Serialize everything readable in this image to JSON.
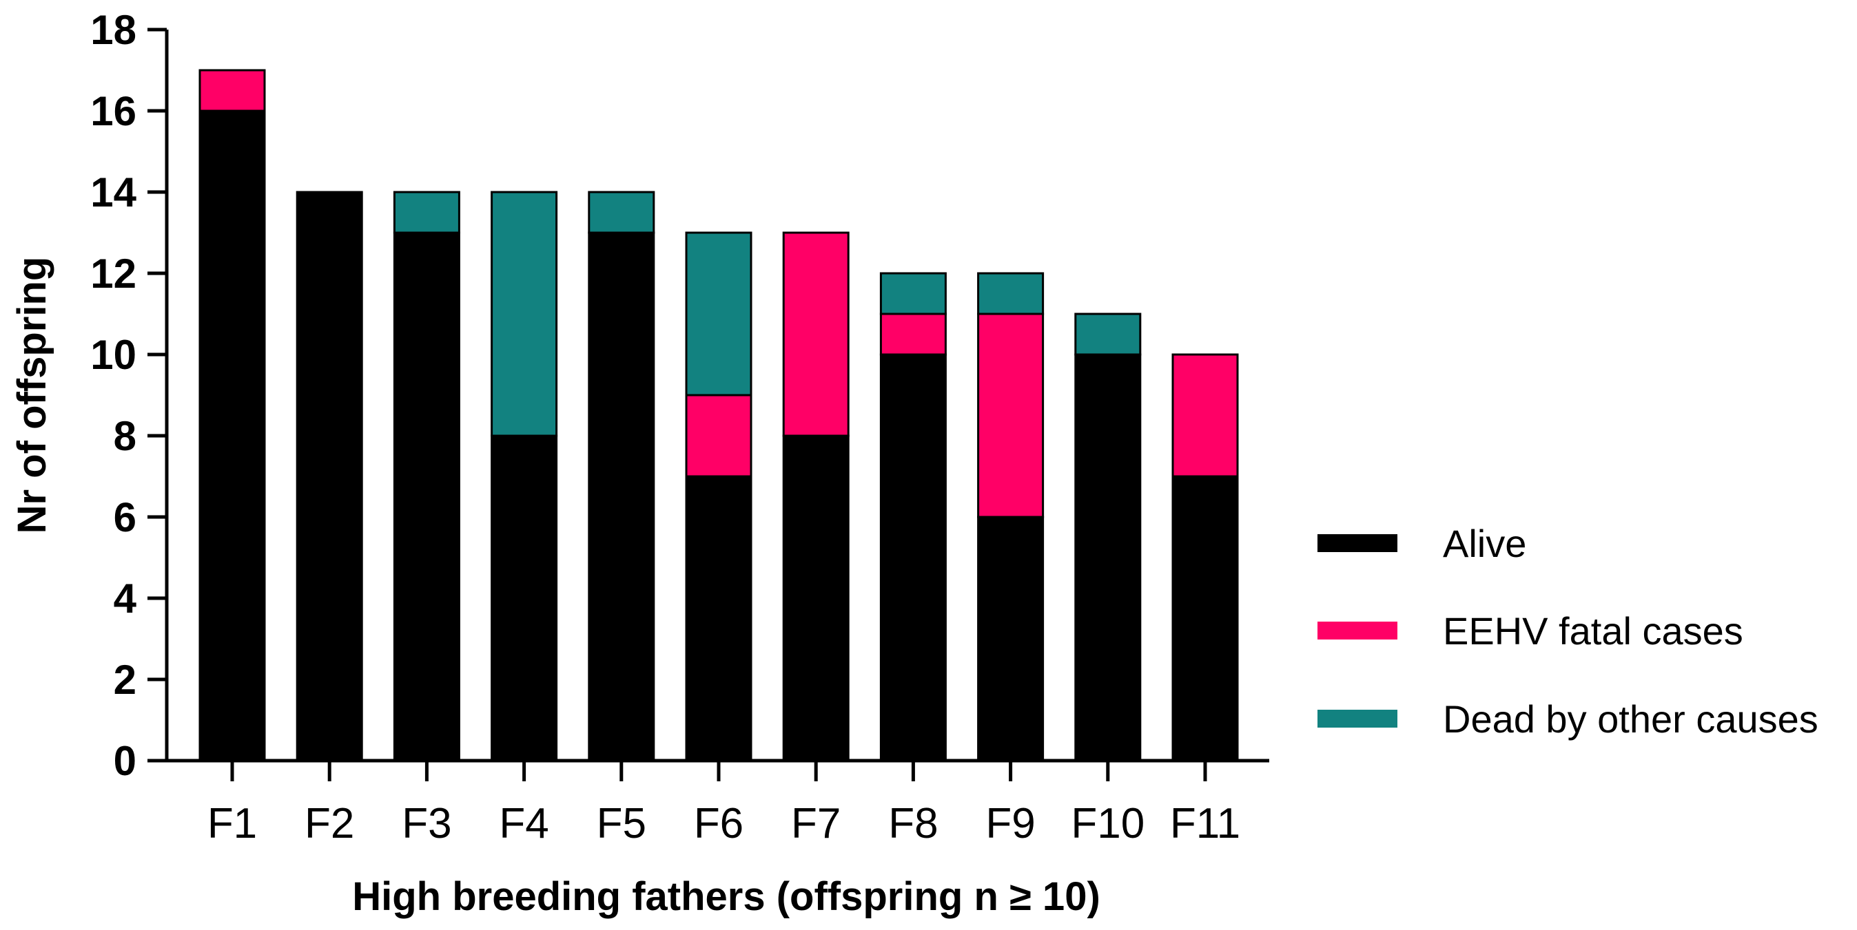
{
  "chart_data": {
    "type": "bar",
    "stacked": true,
    "title": "",
    "xlabel": "High breeding fathers (offspring n ≥ 10)",
    "ylabel": "Nr of offspring",
    "ylim": [
      0,
      18
    ],
    "yticks": [
      0,
      2,
      4,
      6,
      8,
      10,
      12,
      14,
      16,
      18
    ],
    "yticks_text": [
      "0",
      "2",
      "4",
      "6",
      "8",
      "10",
      "12",
      "14",
      "16",
      "18"
    ],
    "categories": [
      "F1",
      "F2",
      "F3",
      "F4",
      "F5",
      "F6",
      "F7",
      "F8",
      "F9",
      "F10",
      "F11"
    ],
    "series": [
      {
        "name": "Alive",
        "color": "#000000",
        "values": [
          16,
          14,
          13,
          8,
          13,
          7,
          8,
          10,
          6,
          10,
          7
        ]
      },
      {
        "name": "EEHV fatal cases",
        "color": "#ff0066",
        "values": [
          1,
          0,
          0,
          0,
          0,
          2,
          5,
          1,
          5,
          0,
          3
        ]
      },
      {
        "name": "Dead by other causes",
        "color": "#128280",
        "values": [
          0,
          0,
          1,
          6,
          1,
          4,
          0,
          1,
          1,
          1,
          0
        ]
      }
    ],
    "legend": {
      "position": "right"
    },
    "grid": false
  }
}
